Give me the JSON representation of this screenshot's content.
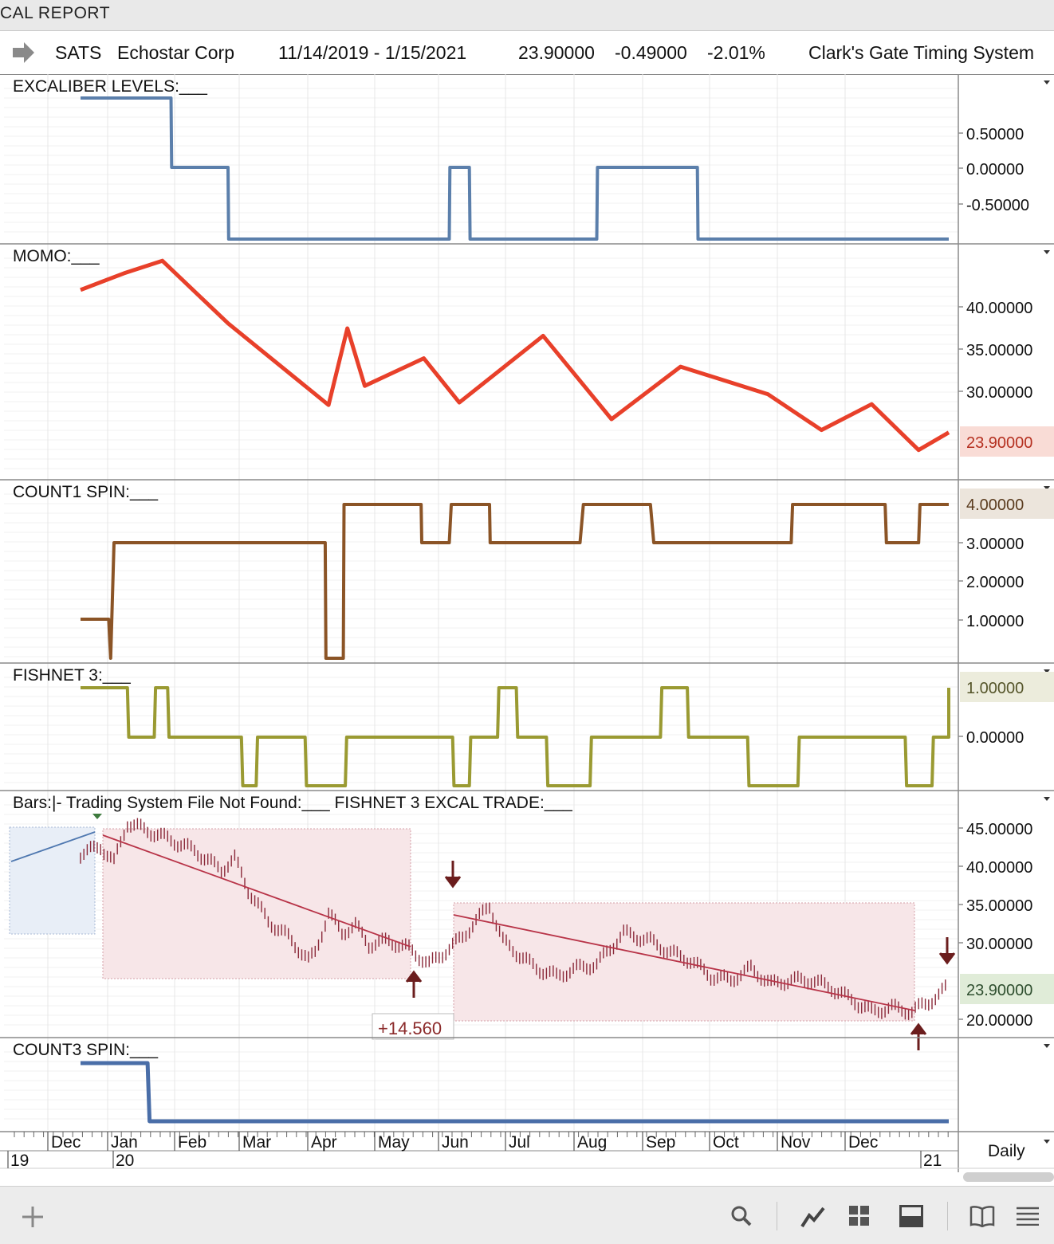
{
  "window": {
    "title": "CAL REPORT"
  },
  "header": {
    "symbol": "SATS",
    "company": "Echostar Corp",
    "date_range": "11/14/2019 - 1/15/2021",
    "last": "23.90000",
    "change": "-0.49000",
    "change_pct": "-2.01%",
    "system": "Clark's Gate Timing System"
  },
  "timeframe": "Daily",
  "chart_data": [
    {
      "type": "line",
      "title": "EXCALIBER LEVELS:___",
      "y_ticks": [
        "0.50000",
        "0.00000",
        "-0.50000"
      ],
      "color": "#5b7fab",
      "x_months": [
        -0.5,
        0.0,
        0.85,
        0.86,
        1.7,
        1.71,
        5.0,
        5.01,
        5.3,
        5.31,
        7.2,
        7.21,
        8.7,
        8.71,
        12.5
      ],
      "values": [
        1,
        1,
        1,
        0,
        0,
        -1,
        -1,
        0,
        0,
        -1,
        -1,
        0,
        0,
        -1,
        -1
      ]
    },
    {
      "type": "line",
      "title": "MOMO:___",
      "y_ticks": [
        "40.00000",
        "35.00000",
        "30.00000"
      ],
      "last_value_label": "23.90000",
      "color": "#e8402a",
      "x_months": [
        -0.5,
        0.15,
        0.72,
        1.7,
        3.2,
        3.48,
        3.74,
        4.62,
        5.15,
        6.4,
        7.42,
        8.45,
        9.75,
        10.55,
        11.3,
        12.0,
        12.5
      ],
      "values": [
        41,
        43,
        44.5,
        37,
        27.2,
        36.4,
        29.5,
        32.8,
        27.5,
        35.5,
        25.5,
        31.8,
        28.5,
        24.2,
        27.3,
        21.8,
        23.9
      ]
    },
    {
      "type": "line",
      "title": "COUNT1 SPIN:___",
      "y_ticks": [
        "3.00000",
        "2.00000",
        "1.00000"
      ],
      "last_value_label": "4.00000",
      "color": "#8b5426",
      "x_months": [
        -0.5,
        -0.08,
        -0.05,
        0.0,
        1.5,
        3.15,
        3.16,
        3.4,
        3.42,
        3.43,
        4.58,
        4.59,
        4.62,
        5.0,
        5.03,
        5.6,
        5.61,
        6.95,
        7.0,
        8.0,
        8.05,
        10.1,
        10.12,
        11.5,
        11.52,
        12.0,
        12.02,
        12.5
      ],
      "values": [
        1,
        1,
        0,
        3,
        3,
        3,
        0,
        0,
        0,
        4,
        4,
        3,
        3,
        3,
        4,
        4,
        3,
        3,
        4,
        4,
        3,
        3,
        4,
        4,
        3,
        3,
        4,
        4
      ]
    },
    {
      "type": "line",
      "title": "FISHNET 3:___",
      "y_ticks": [
        "0.00000"
      ],
      "last_value_label": "1.00000",
      "color": "#9a9a32",
      "x_months": [
        -0.5,
        0.2,
        0.22,
        0.6,
        0.62,
        0.8,
        0.82,
        1.9,
        1.92,
        2.12,
        2.14,
        2.85,
        2.87,
        3.45,
        3.47,
        5.05,
        5.07,
        5.3,
        5.32,
        5.72,
        5.74,
        6.0,
        6.02,
        6.45,
        6.47,
        7.1,
        7.12,
        8.15,
        8.17,
        8.55,
        8.57,
        9.45,
        9.47,
        10.2,
        10.22,
        11.8,
        11.82,
        12.2,
        12.22,
        12.45,
        12.5
      ],
      "values": [
        1,
        1,
        0,
        0,
        1,
        1,
        0,
        0,
        -1,
        -1,
        0,
        0,
        -1,
        -1,
        0,
        0,
        -1,
        -1,
        0,
        0,
        1,
        1,
        0,
        0,
        -1,
        -1,
        0,
        0,
        1,
        1,
        0,
        0,
        -1,
        -1,
        0,
        0,
        -1,
        -1,
        0,
        0,
        1
      ]
    },
    {
      "type": "line",
      "title": "Bars:|-    Trading System File Not Found:___    FISHNET 3 EXCAL TRADE:___",
      "y_ticks": [
        "45.00000",
        "40.00000",
        "35.00000",
        "30.00000",
        "20.00000"
      ],
      "last_value_label": "23.90000",
      "color": "#8b2a3a",
      "annotation": "+14.560",
      "x_months": [
        -0.5,
        -0.2,
        0.0,
        0.2,
        0.5,
        0.8,
        1.2,
        1.6,
        1.8,
        2.0,
        2.3,
        2.6,
        2.9,
        3.0,
        3.2,
        3.4,
        3.6,
        3.8,
        4.1,
        4.4,
        4.7,
        5.0,
        5.2,
        5.4,
        5.6,
        5.8,
        6.0,
        6.3,
        6.6,
        6.9,
        7.2,
        7.6,
        8.0,
        8.3,
        8.6,
        8.9,
        9.2,
        9.5,
        9.8,
        10.1,
        10.4,
        10.7,
        11.0,
        11.3,
        11.6,
        11.9,
        12.1,
        12.3,
        12.5
      ],
      "values": [
        40.5,
        41.5,
        39.5,
        44.5,
        43.5,
        42.5,
        41,
        38.5,
        40,
        36,
        32,
        30,
        27,
        28,
        33,
        30.5,
        31.5,
        29,
        29.5,
        28.5,
        26.5,
        28.5,
        30,
        32,
        34,
        29.5,
        28,
        26,
        25,
        26,
        26.5,
        30.5,
        29.5,
        28,
        27,
        25,
        24.5,
        26,
        24,
        24.5,
        24.5,
        23.5,
        22,
        20.5,
        21,
        20.5,
        21.5,
        22.5,
        23.9
      ]
    },
    {
      "type": "line",
      "title": "COUNT3 SPIN:___",
      "y_ticks": [],
      "color": "#4a6ea8",
      "x_months": [
        -0.5,
        0.5,
        0.53,
        12.5
      ],
      "values": [
        1,
        1,
        0,
        0
      ]
    }
  ],
  "x_axis": {
    "months": [
      "Dec",
      "Jan",
      "Feb",
      "Mar",
      "Apr",
      "May",
      "Jun",
      "Jul",
      "Aug",
      "Sep",
      "Oct",
      "Nov",
      "Dec"
    ],
    "years": [
      "19",
      "20",
      "21"
    ]
  }
}
